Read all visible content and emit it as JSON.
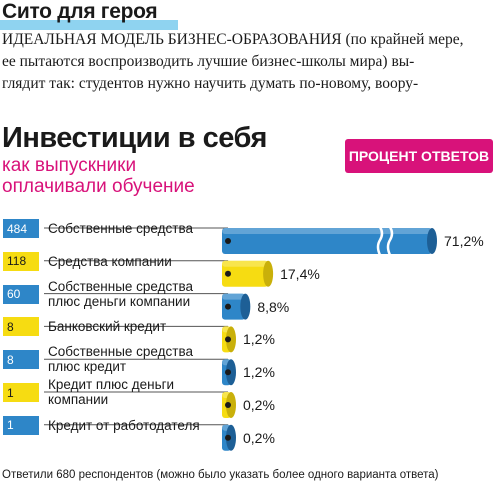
{
  "article": {
    "title": "Сито для героя",
    "lines": [
      "ИДЕАЛЬНАЯ МОДЕЛЬ БИЗНЕС-ОБРАЗОВАНИЯ (по крайней мере,",
      "ее пытаются воспроизводить лучшие бизнес-школы мира) вы-",
      "глядит так: студентов нужно научить думать по-новому, воору-"
    ]
  },
  "badge": "ПРОЦЕНТ ОТВЕТОВ",
  "footnote": "Ответили 680 респондентов (можно было указать более одного варианта ответа)",
  "colors": {
    "blue": "#2e86c8",
    "yellow": "#f6dc12",
    "accent": "#d8127a"
  },
  "chart_data": {
    "type": "bar",
    "title": "Инвестиции в себя",
    "subtitle": [
      "как выпускники",
      "оплачивали обучение"
    ],
    "categories": [
      [
        "Собственные средства"
      ],
      [
        "Средства компании"
      ],
      [
        "Собственные средства",
        "плюс деньги компании"
      ],
      [
        "Банковский кредит"
      ],
      [
        "Собственные средства",
        "плюс кредит"
      ],
      [
        "Кредит плюс деньги",
        "компании"
      ],
      [
        "Кредит от работодателя"
      ]
    ],
    "counts": [
      "484",
      "118",
      "60",
      "8",
      "8",
      "1",
      "1"
    ],
    "values": [
      71.2,
      17.4,
      8.8,
      1.2,
      1.2,
      0.2,
      0.2
    ],
    "value_labels": [
      "71,2%",
      "17,4%",
      "8,8%",
      "1,2%",
      "1,2%",
      "0,2%",
      "0,2%"
    ],
    "bar_colors": [
      "blue",
      "yellow",
      "blue",
      "yellow",
      "blue",
      "yellow",
      "blue"
    ],
    "axis_break_on_first_bar": true
  }
}
